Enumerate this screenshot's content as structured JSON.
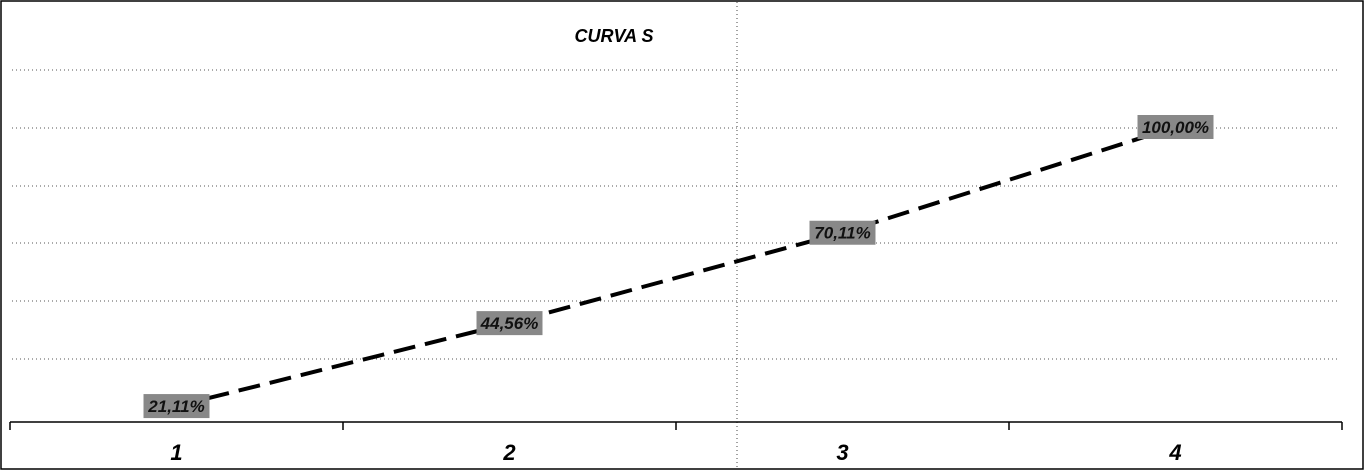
{
  "chart_data": {
    "type": "line",
    "title": "CURVA S",
    "categories": [
      "1",
      "2",
      "3",
      "4"
    ],
    "series": [
      {
        "values": [
          21.11,
          44.56,
          70.11,
          100.0
        ]
      }
    ],
    "data_labels": [
      "21,11%",
      "44,56%",
      "70,11%",
      "100,00%"
    ],
    "ylim": [
      0,
      120
    ],
    "grid": true,
    "line_style": "dashed",
    "line_color": "#000000",
    "label_background": "#888888"
  }
}
